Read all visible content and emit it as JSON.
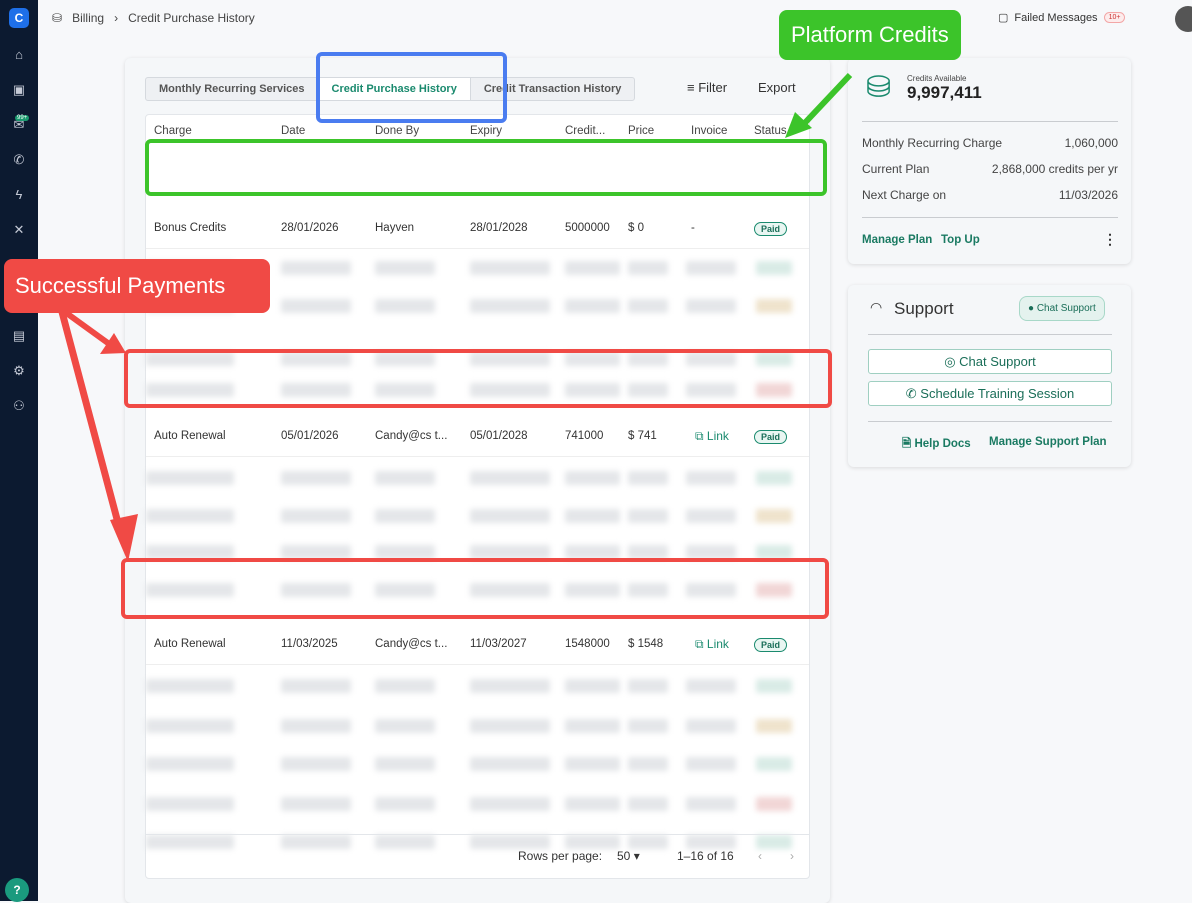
{
  "breadcrumb": {
    "parent": "Billing",
    "current": "Credit Purchase History"
  },
  "sidebar": {
    "logo": "C",
    "badge": "99+",
    "icons": [
      "home-icon",
      "contacts-icon",
      "inbox-icon",
      "phone-icon",
      "automation-icon",
      "tools-icon",
      "marketplace-icon",
      "settings-icon",
      "team-icon"
    ]
  },
  "topbar": {
    "failed_messages": "Failed Messages",
    "failed_count": "10+"
  },
  "tabs": [
    "Monthly Recurring Services",
    "Credit Purchase History",
    "Credit Transaction History"
  ],
  "actions": {
    "filter": "Filter",
    "export": "Export"
  },
  "table": {
    "columns": [
      "Charge",
      "Date",
      "Done By",
      "Expiry",
      "Credit...",
      "Price",
      "Invoice",
      "Status"
    ],
    "rows": [
      {
        "charge": "Bonus Credits",
        "date": "28/01/2026",
        "done_by": "Hayven",
        "expiry": "28/01/2028",
        "credits": "5000000",
        "price": "$ 0",
        "invoice": "-",
        "status": "Paid"
      },
      {
        "charge": "Auto Renewal",
        "date": "05/01/2026",
        "done_by": "Candy@cs t...",
        "expiry": "05/01/2028",
        "credits": "741000",
        "price": "$ 741",
        "invoice": "Link",
        "status": "Paid"
      },
      {
        "charge": "Auto Renewal",
        "date": "11/03/2025",
        "done_by": "Candy@cs t...",
        "expiry": "11/03/2027",
        "credits": "1548000",
        "price": "$ 1548",
        "invoice": "Link",
        "status": "Paid"
      }
    ]
  },
  "pagination": {
    "rows_per_page_label": "Rows per page:",
    "rows_per_page": "50",
    "range": "1–16 of 16"
  },
  "credits": {
    "label": "Credits Available",
    "value": "9,997,411",
    "monthly_label": "Monthly Recurring Charge",
    "monthly_value": "1,060,000",
    "plan_label": "Current Plan",
    "plan_value": "2,868,000 credits per yr",
    "next_label": "Next Charge on",
    "next_value": "11/03/2026",
    "manage_plan": "Manage Plan",
    "top_up": "Top Up"
  },
  "support": {
    "title": "Support",
    "badge": "Chat Support",
    "chat_button": "Chat Support",
    "training_button": "Schedule Training Session",
    "help_docs": "Help Docs",
    "manage_support": "Manage Support Plan"
  },
  "annotations": {
    "platform": "Platform Credits",
    "payments": "Successful Payments"
  },
  "colors": {
    "accent": "#1a8a6e",
    "sidebar": "#0c1a30",
    "green_annotation": "#3cc42a",
    "red_annotation": "#f04a45",
    "blue_annotation": "#4a7cf0"
  }
}
